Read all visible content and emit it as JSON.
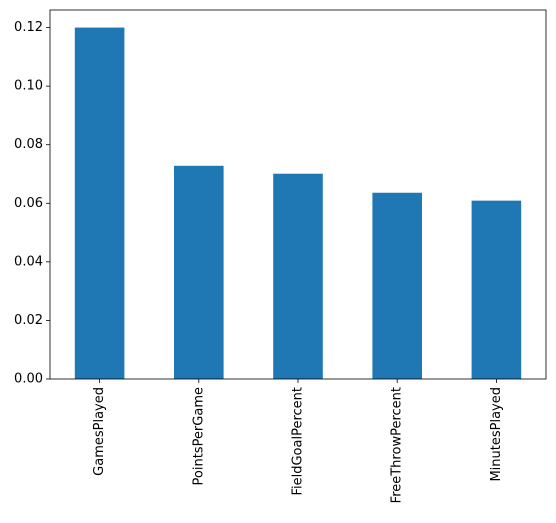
{
  "chart_data": {
    "type": "bar",
    "categories": [
      "GamesPlayed",
      "PointsPerGame",
      "FieldGoalPercent",
      "FreeThrowPercent",
      "MinutesPlayed"
    ],
    "values": [
      0.12,
      0.0728,
      0.0701,
      0.0636,
      0.0609
    ],
    "color": "#1f77b4",
    "ylim": [
      0,
      0.126
    ],
    "yticks": [
      {
        "value": 0,
        "label": "0.00"
      },
      {
        "value": 0.02,
        "label": "0.02"
      },
      {
        "value": 0.04,
        "label": "0.04"
      },
      {
        "value": 0.06,
        "label": "0.06"
      },
      {
        "value": 0.08,
        "label": "0.08"
      },
      {
        "value": 0.1,
        "label": "0.10"
      },
      {
        "value": 0.12,
        "label": "0.12"
      }
    ],
    "grid": false
  }
}
